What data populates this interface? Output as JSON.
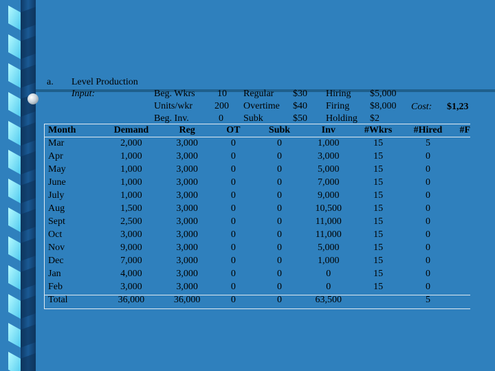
{
  "header": {
    "item_label": "a.",
    "title": "Level Production",
    "input_label": "Input:",
    "params": [
      {
        "label": "Beg. Wkrs",
        "value": "10"
      },
      {
        "label": "Units/wkr",
        "value": "200"
      },
      {
        "label": "Beg. Inv.",
        "value": "0"
      }
    ],
    "costs_a": [
      {
        "label": "Regular",
        "value": "$30"
      },
      {
        "label": "Overtime",
        "value": "$40"
      },
      {
        "label": "Subk",
        "value": "$50"
      }
    ],
    "costs_b": [
      {
        "label": "Hiring",
        "value": "$5,000"
      },
      {
        "label": "Firing",
        "value": "$8,000"
      },
      {
        "label": "Holding",
        "value": "$2"
      }
    ],
    "cost_label": "Cost:",
    "cost_value": "$1,23"
  },
  "table": {
    "columns": [
      "Month",
      "Demand",
      "Reg",
      "OT",
      "Subk",
      "Inv",
      "#Wkrs",
      "#Hired",
      "#F"
    ],
    "rows": [
      [
        "Mar",
        "2,000",
        "3,000",
        "0",
        "0",
        "1,000",
        "15",
        "5",
        ""
      ],
      [
        "Apr",
        "1,000",
        "3,000",
        "0",
        "0",
        "3,000",
        "15",
        "0",
        ""
      ],
      [
        "May",
        "1,000",
        "3,000",
        "0",
        "0",
        "5,000",
        "15",
        "0",
        ""
      ],
      [
        "June",
        "1,000",
        "3,000",
        "0",
        "0",
        "7,000",
        "15",
        "0",
        ""
      ],
      [
        "July",
        "1,000",
        "3,000",
        "0",
        "0",
        "9,000",
        "15",
        "0",
        ""
      ],
      [
        "Aug",
        "1,500",
        "3,000",
        "0",
        "0",
        "10,500",
        "15",
        "0",
        ""
      ],
      [
        "Sept",
        "2,500",
        "3,000",
        "0",
        "0",
        "11,000",
        "15",
        "0",
        ""
      ],
      [
        "Oct",
        "3,000",
        "3,000",
        "0",
        "0",
        "11,000",
        "15",
        "0",
        ""
      ],
      [
        "Nov",
        "9,000",
        "3,000",
        "0",
        "0",
        "5,000",
        "15",
        "0",
        ""
      ],
      [
        "Dec",
        "7,000",
        "3,000",
        "0",
        "0",
        "1,000",
        "15",
        "0",
        ""
      ],
      [
        "Jan",
        "4,000",
        "3,000",
        "0",
        "0",
        "0",
        "15",
        "0",
        ""
      ],
      [
        "Feb",
        "3,000",
        "3,000",
        "0",
        "0",
        "0",
        "15",
        "0",
        ""
      ],
      [
        "Total",
        "36,000",
        "36,000",
        "0",
        "0",
        "63,500",
        "",
        "5",
        ""
      ]
    ]
  },
  "colors": {
    "background": "#2f80bd",
    "ribbon_dark": "#123f6b",
    "ribbon_light": "#8be8ff",
    "accent_rule": "#1f5f8c"
  }
}
